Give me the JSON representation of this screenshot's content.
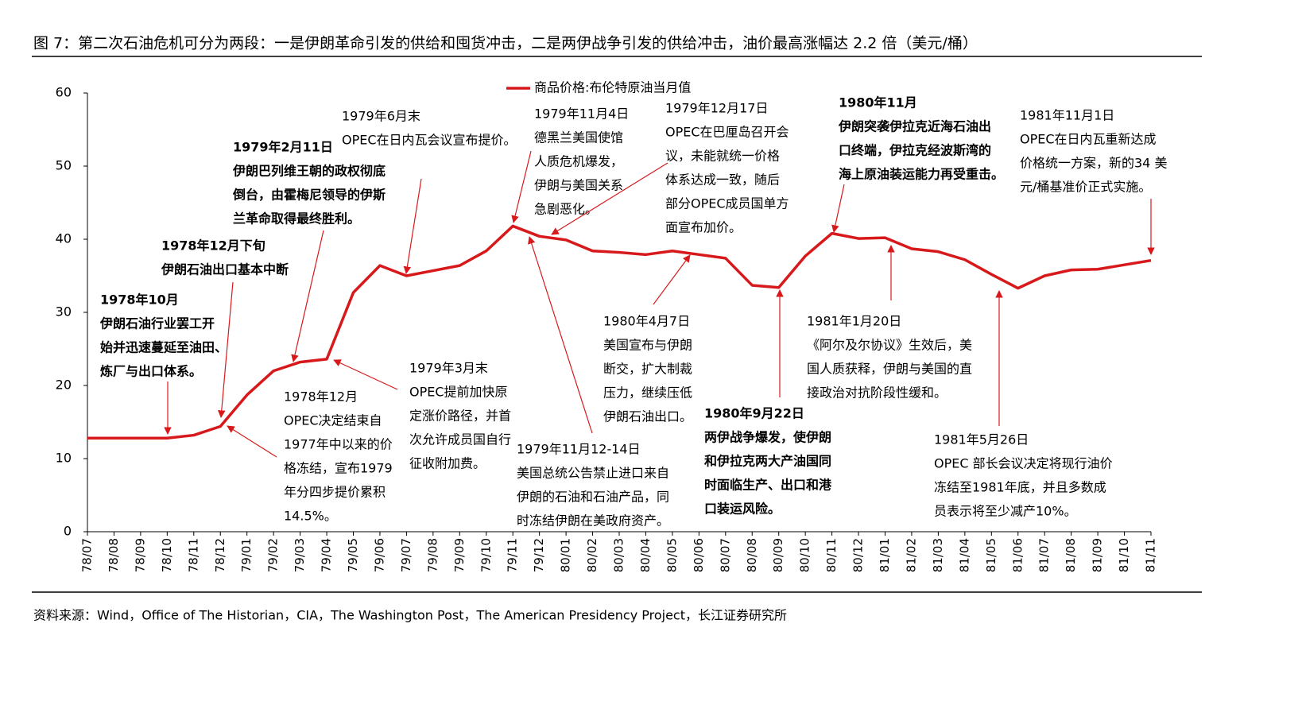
{
  "chart_data": {
    "type": "line",
    "title": "图 7：第二次石油危机可分为两段：一是伊朗革命引发的供给和囤货冲击，二是两伊战争引发的供给冲击，油价最高涨幅达 2.2 倍（美元/桶）",
    "source": "资料来源：Wind，Office of The Historian，CIA，The Washington Post，The American Presidency Project，长江证券研究所",
    "categories": [
      "78/07",
      "78/08",
      "78/09",
      "78/10",
      "78/11",
      "78/12",
      "79/01",
      "79/02",
      "79/03",
      "79/04",
      "79/05",
      "79/06",
      "79/07",
      "79/08",
      "79/09",
      "79/10",
      "79/11",
      "79/12",
      "80/01",
      "80/02",
      "80/03",
      "80/04",
      "80/05",
      "80/06",
      "80/07",
      "80/08",
      "80/09",
      "80/10",
      "80/11",
      "80/12",
      "81/01",
      "81/02",
      "81/03",
      "81/04",
      "81/05",
      "81/06",
      "81/07",
      "81/08",
      "81/09",
      "81/10",
      "81/11"
    ],
    "series": [
      {
        "name": "商品价格:布伦特原油当月值",
        "color": "#d7191c",
        "values": [
          12.8,
          12.8,
          12.8,
          12.8,
          13.2,
          14.4,
          18.7,
          22,
          23.2,
          23.6,
          32.7,
          36.4,
          35,
          35.7,
          36.4,
          38.4,
          41.8,
          40.4,
          39.9,
          38.4,
          38.2,
          37.9,
          38.4,
          37.9,
          37.4,
          33.7,
          33.4,
          37.7,
          40.8,
          40.1,
          40.2,
          38.7,
          38.3,
          37.2,
          35.2,
          33.3,
          35,
          35.8,
          35.9,
          36.5,
          37.1
        ]
      }
    ],
    "ylim": [
      0,
      60
    ],
    "yticks": [
      0,
      10,
      20,
      30,
      40,
      50,
      60
    ],
    "annotations": [
      {
        "bold": true,
        "lines": [
          "1978年10月",
          "伊朗石油行业罢工开",
          "始并迅速蔓延至油田、",
          "炼厂与出口体系。"
        ]
      },
      {
        "bold": true,
        "lines": [
          "1978年12月下旬",
          "伊朗石油出口基本中断"
        ]
      },
      {
        "bold": true,
        "lines": [
          "1979年2月11日",
          "伊朗巴列维王朝的政权彻底",
          "倒台，由霍梅尼领导的伊斯",
          "兰革命取得最终胜利。"
        ]
      },
      {
        "bold": false,
        "lines": [
          "1979年6月末",
          "OPEC在日内瓦会议宣布提价。"
        ]
      },
      {
        "bold": false,
        "lines": [
          "1978年12月",
          "OPEC决定结束自",
          "1977年中以来的价",
          "格冻结，宣布1979",
          "年分四步提价累积",
          "14.5%。"
        ]
      },
      {
        "bold": false,
        "lines": [
          "1979年3月末",
          "OPEC提前加快原",
          "定涨价路径，并首",
          "次允许成员国自行",
          "征收附加费。"
        ]
      },
      {
        "bold": false,
        "lines": [
          "1979年11月4日",
          "德黑兰美国使馆",
          "人质危机爆发，",
          "伊朗与美国关系",
          "急剧恶化。"
        ]
      },
      {
        "bold": false,
        "lines": [
          "1979年11月12-14日",
          "美国总统公告禁止进口来自",
          "伊朗的石油和石油产品，同",
          "时冻结伊朗在美政府资产。"
        ]
      },
      {
        "bold": false,
        "lines": [
          "1979年12月17日",
          "OPEC在巴厘岛召开会",
          "议，未能就统一价格",
          "体系达成一致，随后",
          "部分OPEC成员国单方",
          "面宣布加价。"
        ]
      },
      {
        "bold": false,
        "lines": [
          "1980年4月7日",
          "美国宣布与伊朗",
          "断交，扩大制裁",
          "压力，继续压低",
          "伊朗石油出口。"
        ]
      },
      {
        "bold": true,
        "lines": [
          "1980年9月22日",
          "两伊战争爆发，使伊朗",
          "和伊拉克两大产油国同",
          "时面临生产、出口和港",
          "口装运风险。"
        ]
      },
      {
        "bold": true,
        "lines": [
          "1980年11月",
          "伊朗突袭伊拉克近海石油出",
          "口终端，伊拉克经波斯湾的",
          "海上原油装运能力再受重击。"
        ]
      },
      {
        "bold": false,
        "lines": [
          "1981年1月20日",
          "《阿尔及尔协议》生效后，美",
          "国人质获释，伊朗与美国的直",
          "接政治对抗阶段性缓和。"
        ]
      },
      {
        "bold": false,
        "lines": [
          "1981年5月26日",
          "OPEC 部长会议决定将现行油价",
          "冻结至1981年底，并且多数成",
          "员表示将至少减产10%。"
        ]
      },
      {
        "bold": false,
        "lines": [
          "1981年11月1日",
          "OPEC在日内瓦重新达成",
          "价格统一方案，新的34 美",
          "元/桶基准价正式实施。"
        ]
      }
    ]
  }
}
